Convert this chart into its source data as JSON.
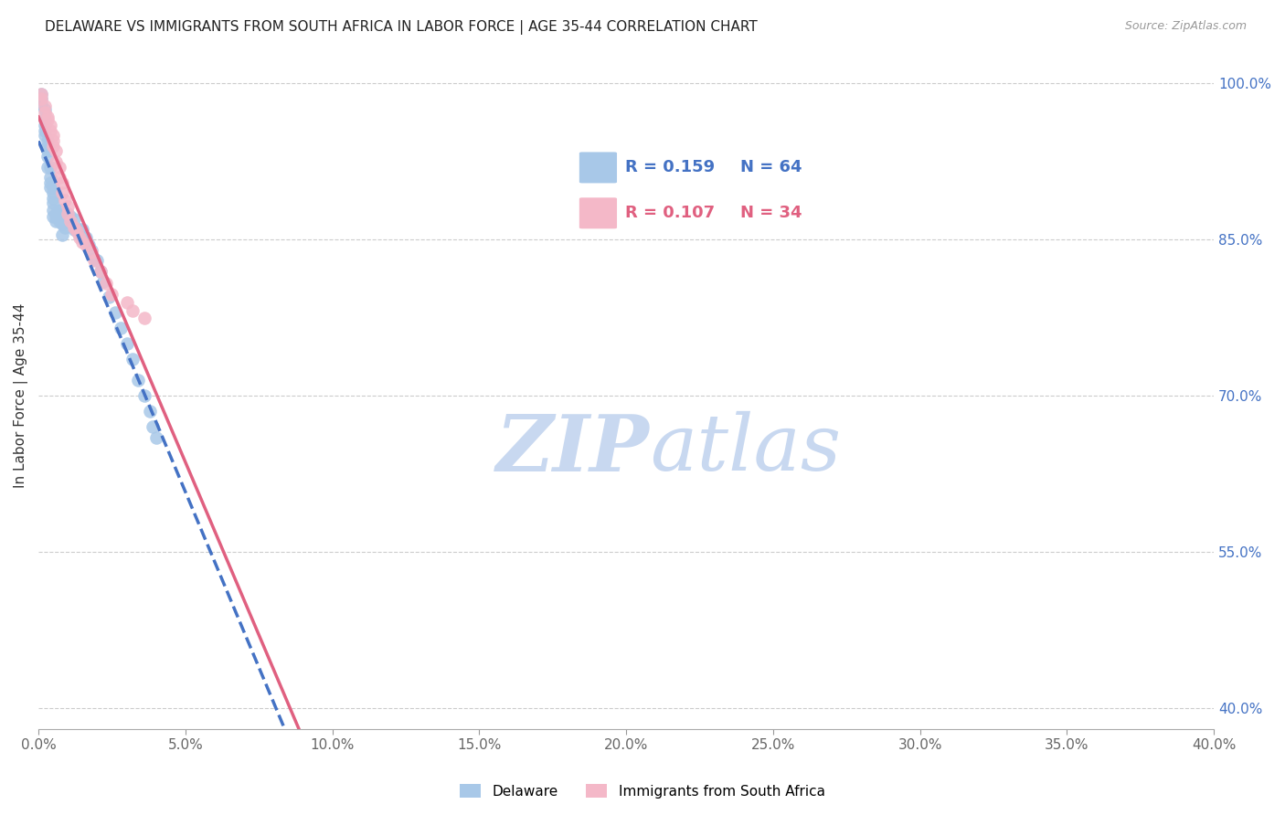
{
  "title": "DELAWARE VS IMMIGRANTS FROM SOUTH AFRICA IN LABOR FORCE | AGE 35-44 CORRELATION CHART",
  "source": "Source: ZipAtlas.com",
  "ylabel": "In Labor Force | Age 35-44",
  "x_ticklabels": [
    "0.0%",
    "5.0%",
    "10.0%",
    "15.0%",
    "20.0%",
    "25.0%",
    "30.0%",
    "35.0%",
    "40.0%"
  ],
  "x_ticks": [
    0.0,
    0.05,
    0.1,
    0.15,
    0.2,
    0.25,
    0.3,
    0.35,
    0.4
  ],
  "y_ticklabels_right": [
    "100.0%",
    "85.0%",
    "70.0%",
    "55.0%",
    "40.0%"
  ],
  "y_ticks_right": [
    1.0,
    0.85,
    0.7,
    0.55,
    0.4
  ],
  "xlim": [
    0.0,
    0.4
  ],
  "ylim": [
    0.38,
    1.02
  ],
  "legend_blue_r": "R = 0.159",
  "legend_blue_n": "N = 64",
  "legend_pink_r": "R = 0.107",
  "legend_pink_n": "N = 34",
  "legend_label_blue": "Delaware",
  "legend_label_pink": "Immigrants from South Africa",
  "blue_color": "#a8c8e8",
  "pink_color": "#f4b8c8",
  "trendline_blue_color": "#4472c4",
  "trendline_pink_color": "#e06080",
  "watermark_zip": "ZIP",
  "watermark_atlas": "atlas",
  "watermark_color_zip": "#c8d8f0",
  "watermark_color_atlas": "#c8d8f0",
  "blue_scatter_x": [
    0.001,
    0.001,
    0.001,
    0.002,
    0.002,
    0.002,
    0.002,
    0.002,
    0.003,
    0.003,
    0.003,
    0.003,
    0.003,
    0.004,
    0.004,
    0.004,
    0.004,
    0.005,
    0.005,
    0.005,
    0.005,
    0.005,
    0.005,
    0.006,
    0.006,
    0.006,
    0.007,
    0.007,
    0.007,
    0.008,
    0.008,
    0.008,
    0.009,
    0.009,
    0.009,
    0.01,
    0.01,
    0.011,
    0.011,
    0.012,
    0.012,
    0.013,
    0.014,
    0.014,
    0.015,
    0.016,
    0.017,
    0.018,
    0.019,
    0.02,
    0.021,
    0.022,
    0.024,
    0.026,
    0.028,
    0.03,
    0.032,
    0.034,
    0.036,
    0.038,
    0.039,
    0.04,
    0.008,
    0.015
  ],
  "blue_scatter_y": [
    0.99,
    0.985,
    0.98,
    0.975,
    0.965,
    0.96,
    0.955,
    0.95,
    0.945,
    0.94,
    0.935,
    0.93,
    0.92,
    0.92,
    0.91,
    0.905,
    0.9,
    0.9,
    0.895,
    0.89,
    0.885,
    0.878,
    0.872,
    0.875,
    0.872,
    0.868,
    0.878,
    0.872,
    0.868,
    0.878,
    0.872,
    0.865,
    0.875,
    0.87,
    0.862,
    0.875,
    0.87,
    0.872,
    0.865,
    0.87,
    0.86,
    0.858,
    0.86,
    0.855,
    0.86,
    0.852,
    0.845,
    0.84,
    0.832,
    0.83,
    0.82,
    0.81,
    0.795,
    0.78,
    0.765,
    0.75,
    0.735,
    0.715,
    0.7,
    0.685,
    0.67,
    0.66,
    0.855,
    0.853
  ],
  "pink_scatter_x": [
    0.001,
    0.001,
    0.002,
    0.002,
    0.003,
    0.003,
    0.004,
    0.004,
    0.005,
    0.005,
    0.005,
    0.006,
    0.006,
    0.007,
    0.007,
    0.008,
    0.008,
    0.009,
    0.01,
    0.01,
    0.011,
    0.012,
    0.013,
    0.014,
    0.015,
    0.016,
    0.018,
    0.019,
    0.021,
    0.023,
    0.025,
    0.03,
    0.032,
    0.036
  ],
  "pink_scatter_y": [
    0.99,
    0.985,
    0.978,
    0.972,
    0.968,
    0.965,
    0.96,
    0.955,
    0.95,
    0.945,
    0.94,
    0.935,
    0.925,
    0.92,
    0.91,
    0.905,
    0.895,
    0.888,
    0.882,
    0.875,
    0.868,
    0.862,
    0.858,
    0.852,
    0.848,
    0.845,
    0.838,
    0.83,
    0.82,
    0.808,
    0.798,
    0.79,
    0.782,
    0.775
  ],
  "trendline_blue_x_start": 0.0,
  "trendline_blue_x_end": 0.4,
  "trendline_pink_x_start": 0.0,
  "trendline_pink_x_end": 0.4
}
